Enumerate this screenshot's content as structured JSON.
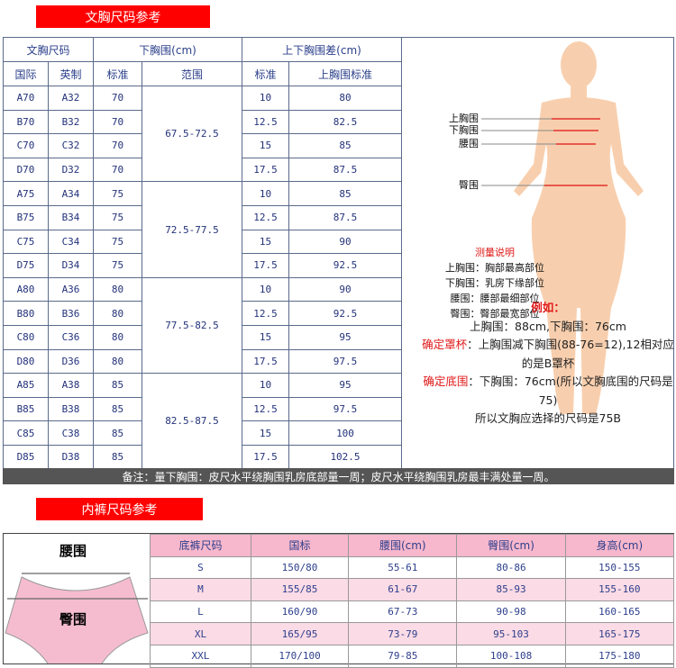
{
  "bra_section": {
    "title": "文胸尺码参考",
    "headers": {
      "size": "文胸尺码",
      "underbust": "下胸围(cm)",
      "diff": "上下胸围差(cm)",
      "intl": "国际",
      "uk": "英制",
      "std": "标准",
      "range": "范围",
      "diff_std": "标准",
      "bust_std": "上胸围标准"
    },
    "rows": [
      [
        "A70",
        "A32",
        "70",
        "10",
        "80"
      ],
      [
        "B70",
        "B32",
        "70",
        "12.5",
        "82.5"
      ],
      [
        "C70",
        "C32",
        "70",
        "15",
        "85"
      ],
      [
        "D70",
        "D32",
        "70",
        "17.5",
        "87.5"
      ],
      [
        "A75",
        "A34",
        "75",
        "10",
        "85"
      ],
      [
        "B75",
        "B34",
        "75",
        "12.5",
        "87.5"
      ],
      [
        "C75",
        "C34",
        "75",
        "15",
        "90"
      ],
      [
        "D75",
        "D34",
        "75",
        "17.5",
        "92.5"
      ],
      [
        "A80",
        "A36",
        "80",
        "10",
        "90"
      ],
      [
        "B80",
        "B36",
        "80",
        "12.5",
        "92.5"
      ],
      [
        "C80",
        "C36",
        "80",
        "15",
        "95"
      ],
      [
        "D80",
        "D36",
        "80",
        "17.5",
        "97.5"
      ],
      [
        "A85",
        "A38",
        "85",
        "10",
        "95"
      ],
      [
        "B85",
        "B38",
        "85",
        "12.5",
        "97.5"
      ],
      [
        "C85",
        "C38",
        "85",
        "15",
        "100"
      ],
      [
        "D85",
        "D38",
        "85",
        "17.5",
        "102.5"
      ]
    ],
    "ranges": [
      "67.5-72.5",
      "72.5-77.5",
      "77.5-82.5",
      "82.5-87.5"
    ],
    "figure_labels": [
      "上胸围",
      "下胸围",
      "腰围",
      "臀围"
    ],
    "measure_title": "测量说明",
    "measure_lines": [
      "上胸围：胸部最高部位",
      "下胸围：乳房下缘部位",
      "腰围：腰部最细部位",
      "臀围：臀部最宽部位"
    ],
    "example": {
      "title": "例如：",
      "line1": "上胸围：88cm,下胸围：76cm",
      "cup_label": "确定罩杯",
      "cup_text": "：上胸围减下胸围(88-76=12),12相对应的是B罩杯",
      "band_label": "确定底围",
      "band_text": "：下胸围：76cm(所以文胸底围的尺码是75)",
      "result": "所以文胸应选择的尺码是75B"
    },
    "note": "备注：量下胸围：皮尺水平绕胸围乳房底部量一周；皮尺水平绕胸围乳房最丰满处量一周。"
  },
  "panty_section": {
    "title": "内裤尺码参考",
    "waist_label": "腰围",
    "hip_label": "臀围",
    "headers": [
      "底裤尺码",
      "国标",
      "腰围(cm)",
      "臀围(cm)",
      "身高(cm)"
    ],
    "rows": [
      [
        "S",
        "150/80",
        "55-61",
        "80-86",
        "150-155"
      ],
      [
        "M",
        "155/85",
        "61-67",
        "85-93",
        "155-160"
      ],
      [
        "L",
        "160/90",
        "67-73",
        "90-98",
        "160-165"
      ],
      [
        "XL",
        "165/95",
        "73-79",
        "95-103",
        "165-175"
      ],
      [
        "XXL",
        "170/100",
        "79-85",
        "100-108",
        "175-180"
      ]
    ]
  },
  "colors": {
    "banner": "#ff0000",
    "accent_red": "#e01818",
    "pink_header": "#f7b7cc",
    "pink_row": "#fbdbe6",
    "skin": "#f8cfae"
  }
}
